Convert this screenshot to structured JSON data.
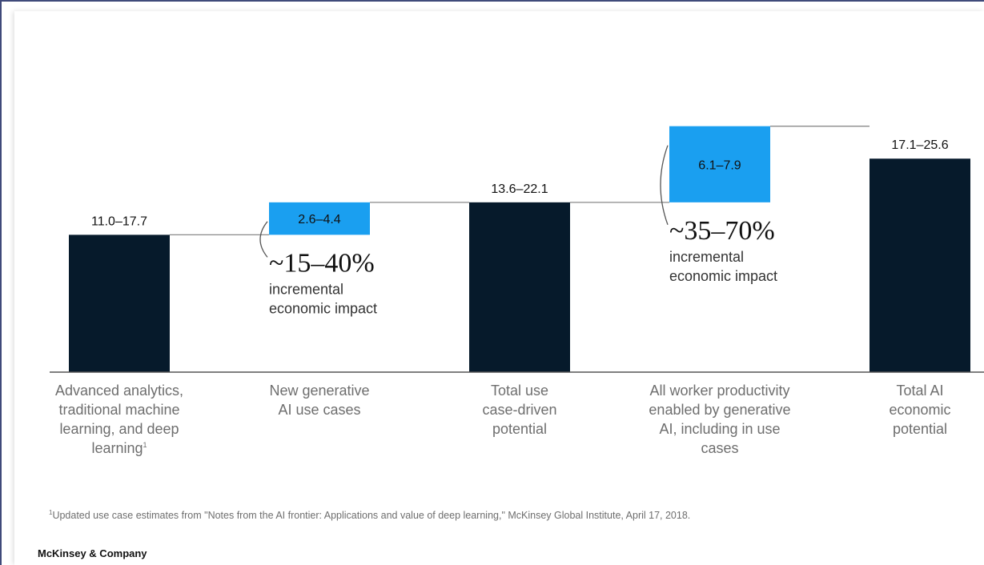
{
  "chart_data": {
    "type": "bar",
    "subtype": "waterfall",
    "categories": [
      "Advanced analytics, traditional machine learning, and deep learning",
      "New generative AI use cases",
      "Total use case-driven potential",
      "All worker productivity enabled by generative AI, including in use cases",
      "Total AI economic potential"
    ],
    "category_lines": [
      [
        "Advanced analytics,",
        "traditional machine",
        "learning, and deep",
        "learning"
      ],
      [
        "New generative",
        "AI use cases"
      ],
      [
        "Total use",
        "case-driven",
        "potential"
      ],
      [
        "All worker productivity",
        "enabled by generative",
        "AI, including in use",
        "cases"
      ],
      [
        "Total AI",
        "economic",
        "potential"
      ]
    ],
    "category_footnote_marker": [
      "1",
      "",
      "",
      "",
      ""
    ],
    "values_low": [
      11.0,
      2.6,
      13.6,
      6.1,
      17.1
    ],
    "values_high": [
      17.7,
      4.4,
      22.1,
      7.9,
      25.6
    ],
    "value_labels": [
      "11.0–17.7",
      "2.6–4.4",
      "13.6–22.1",
      "6.1–7.9",
      "17.1–25.6"
    ],
    "bar_kinds": [
      "total",
      "increment",
      "total",
      "increment",
      "total"
    ],
    "annotations": [
      {
        "bar_index": 1,
        "big": "~15–40%",
        "lines": [
          "incremental",
          "economic impact"
        ]
      },
      {
        "bar_index": 3,
        "big": "~35–70%",
        "lines": [
          "incremental",
          "economic impact"
        ]
      }
    ],
    "colors": {
      "total": "#061a2b",
      "increment": "#1a9ff0",
      "connector": "#8a8a8a",
      "axis": "#555555"
    },
    "grid": false,
    "legend": "none"
  },
  "footnote": {
    "marker": "1",
    "text": "Updated use case estimates from \"Notes from the AI frontier: Applications and value of deep learning,\" McKinsey Global Institute, April 17, 2018."
  },
  "brand": "McKinsey & Company"
}
